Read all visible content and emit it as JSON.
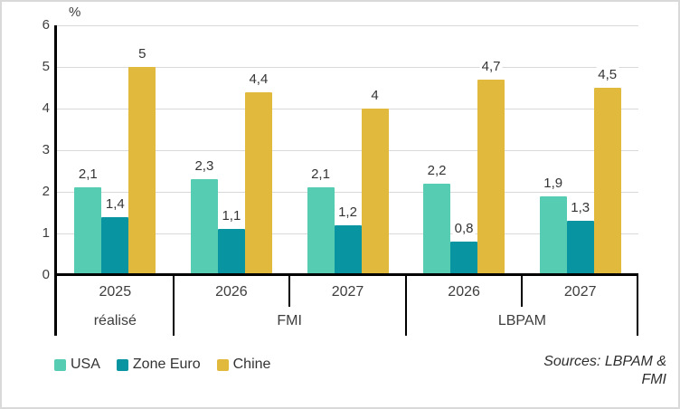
{
  "frame": {
    "background": "#ffffff",
    "border_color": "#d9d9d9"
  },
  "chart": {
    "unit_label": "%",
    "source_lines": [
      "Sources: LBPAM &",
      "FMI"
    ]
  },
  "chart_data": {
    "type": "bar",
    "title": "",
    "ylabel": "%",
    "ylim": [
      0,
      6
    ],
    "y_ticks": [
      "0",
      "1",
      "2",
      "3",
      "4",
      "5",
      "6"
    ],
    "grid": true,
    "legend_position": "bottom-left",
    "categories": [
      "2025",
      "2026",
      "2027",
      "2026",
      "2027"
    ],
    "category_groups": [
      {
        "label": "réalisé",
        "span": 1
      },
      {
        "label": "FMI",
        "span": 2
      },
      {
        "label": "LBPAM",
        "span": 2
      }
    ],
    "series": [
      {
        "name": "USA",
        "color": "#56cdb3",
        "values": [
          2.1,
          2.3,
          2.1,
          2.2,
          1.9
        ],
        "value_labels": [
          "2,1",
          "2,3",
          "2,1",
          "2,2",
          "1,9"
        ]
      },
      {
        "name": "Zone Euro",
        "color": "#0894a0",
        "values": [
          1.4,
          1.1,
          1.2,
          0.8,
          1.3
        ],
        "value_labels": [
          "1,4",
          "1,1",
          "1,2",
          "0,8",
          "1,3"
        ]
      },
      {
        "name": "Chine",
        "color": "#e0b93d",
        "values": [
          5,
          4.4,
          4,
          4.7,
          4.5
        ],
        "value_labels": [
          "5",
          "4,4",
          "4",
          "4,7",
          "4,5"
        ]
      }
    ],
    "source": "Sources: LBPAM & FMI"
  }
}
